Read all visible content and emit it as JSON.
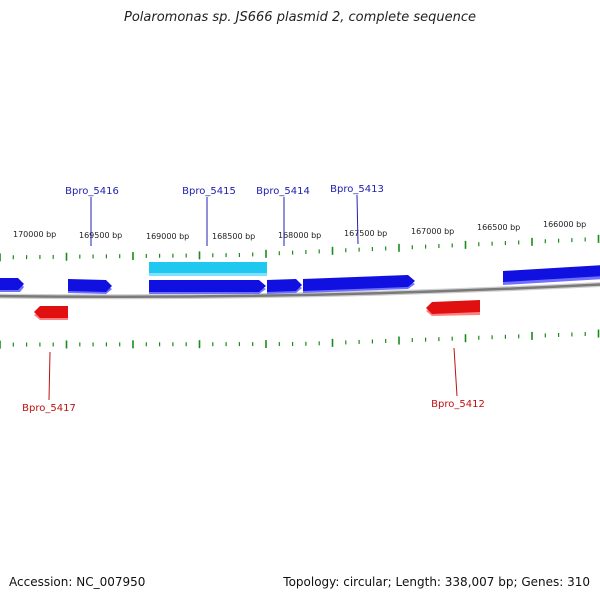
{
  "title": "Polaromonas sp. JS666 plasmid 2, complete sequence",
  "footer": {
    "accession": "Accession: NC_007950",
    "summary": "Topology: circular; Length: 338,007 bp; Genes: 310"
  },
  "colors": {
    "forward_gene": "#1010e0",
    "forward_gene_highlight": "#20c8f0",
    "reverse_gene": "#e01010",
    "forward_label": "#2020b0",
    "reverse_label": "#c01010",
    "backbone": "#808080",
    "ticks": "#1a8a1a"
  },
  "scale_labels": [
    "170000 bp",
    "169500 bp",
    "169000 bp",
    "168500 bp",
    "168000 bp",
    "167500 bp",
    "167000 bp",
    "166500 bp",
    "166000 bp"
  ],
  "gene_labels": {
    "forward": [
      "Bpro_5416",
      "Bpro_5415",
      "Bpro_5414",
      "Bpro_5413"
    ],
    "reverse": [
      "Bpro_5417",
      "Bpro_5412"
    ]
  }
}
